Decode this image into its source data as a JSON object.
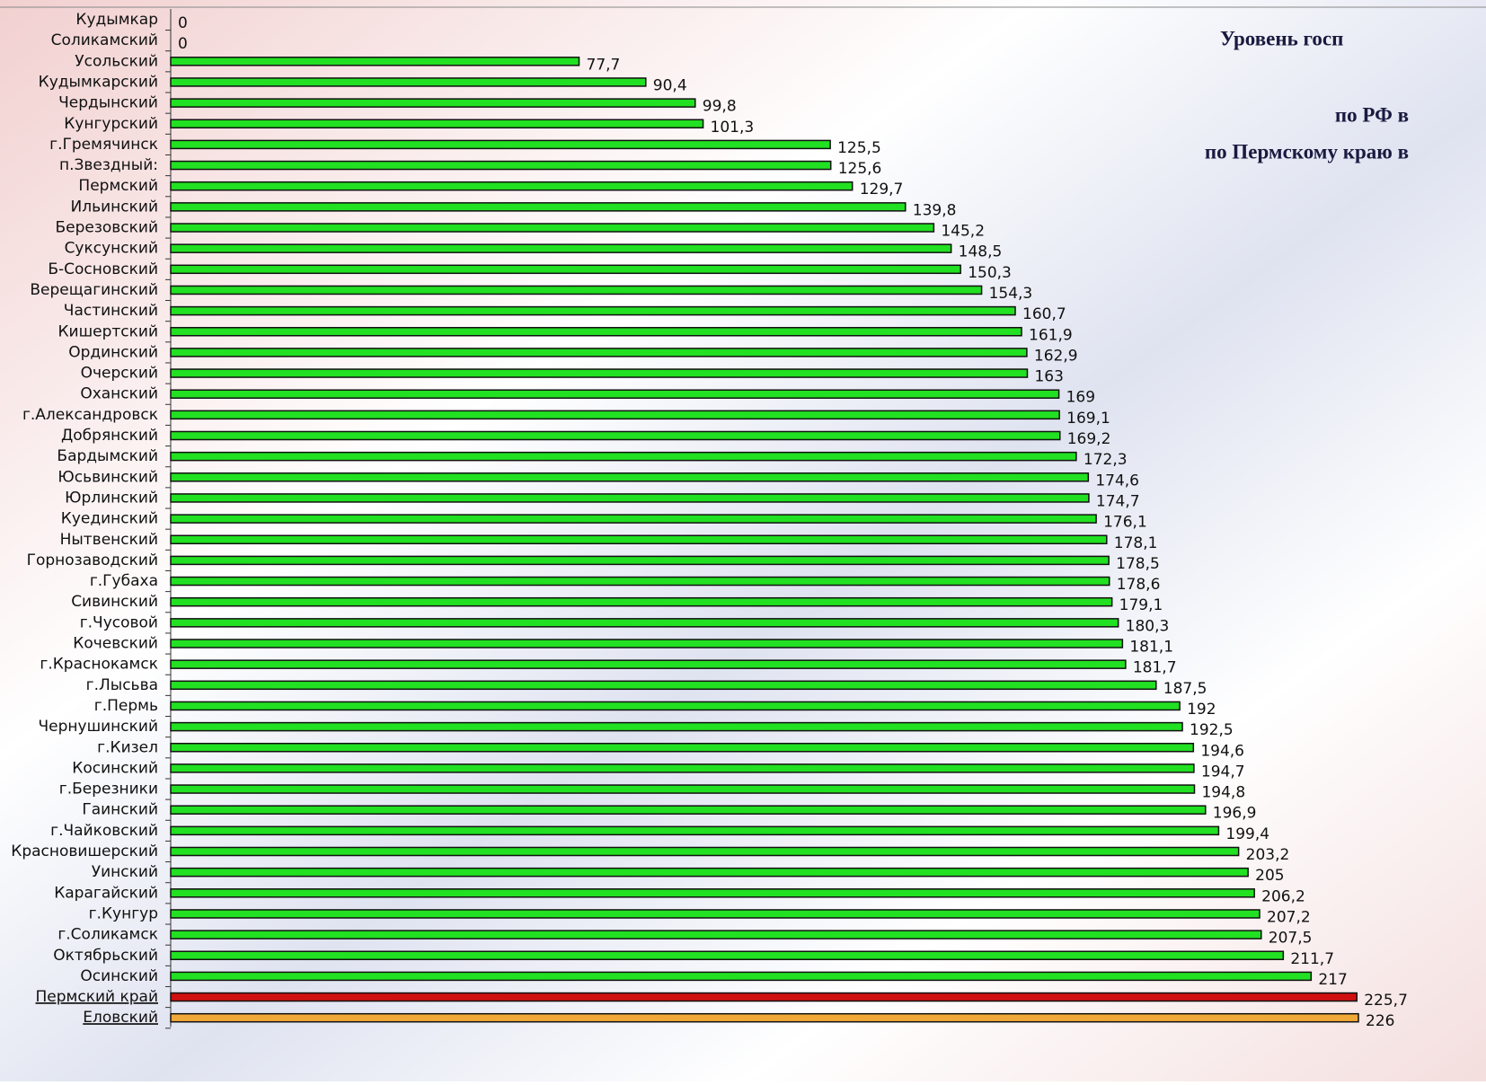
{
  "chart_data": {
    "type": "bar",
    "orientation": "horizontal",
    "annotations": [
      "Уровень госп",
      "по РФ в",
      "по Пермскому краю в"
    ],
    "categories": [
      "Кудымкар",
      "Соликамский",
      "Усольский",
      "Кудымкарский",
      "Чердынский",
      "Кунгурский",
      "г.Гремячинск",
      "п.Звездный:",
      "Пермский",
      "Ильинский",
      "Березовский",
      "Суксунский",
      "Б-Сосновский",
      "Верещагинский",
      "Частинский",
      "Кишертский",
      "Ординский",
      "Очерский",
      "Оханский",
      "г.Александровск",
      "Добрянский",
      "Бардымский",
      "Юсьвинский",
      "Юрлинский",
      "Куединский",
      "Нытвенский",
      "Горнозаводский",
      "г.Губаха",
      "Сивинский",
      "г.Чусовой",
      "Кочевский",
      "г.Краснокамск",
      "г.Лысьва",
      "г.Пермь",
      "Чернушинский",
      "г.Кизел",
      "Косинский",
      "г.Березники",
      "Гаинский",
      "г.Чайковский",
      "Красновишерский",
      "Уинский",
      "Карагайский",
      "г.Кунгур",
      "г.Соликамск",
      "Октябрьский",
      "Осинский",
      "Пермский край",
      "Еловский"
    ],
    "values": [
      0,
      0,
      77.7,
      90.4,
      99.8,
      101.3,
      125.5,
      125.6,
      129.7,
      139.8,
      145.2,
      148.5,
      150.3,
      154.3,
      160.7,
      161.9,
      162.9,
      163,
      169,
      169.1,
      169.2,
      172.3,
      174.6,
      174.7,
      176.1,
      178.1,
      178.5,
      178.6,
      179.1,
      180.3,
      181.1,
      181.7,
      187.5,
      192,
      192.5,
      194.6,
      194.7,
      194.8,
      196.9,
      199.4,
      203.2,
      205,
      206.2,
      207.2,
      207.5,
      211.7,
      217,
      225.7,
      226
    ],
    "value_labels": [
      "0",
      "0",
      "77,7",
      "90,4",
      "99,8",
      "101,3",
      "125,5",
      "125,6",
      "129,7",
      "139,8",
      "145,2",
      "148,5",
      "150,3",
      "154,3",
      "160,7",
      "161,9",
      "162,9",
      "163",
      "169",
      "169,1",
      "169,2",
      "172,3",
      "174,6",
      "174,7",
      "176,1",
      "178,1",
      "178,5",
      "178,6",
      "179,1",
      "180,3",
      "181,1",
      "181,7",
      "187,5",
      "192",
      "192,5",
      "194,6",
      "194,7",
      "194,8",
      "196,9",
      "199,4",
      "203,2",
      "205",
      "206,2",
      "207,2",
      "207,5",
      "211,7",
      "217",
      "225,7",
      "226"
    ],
    "color": "#22e022",
    "colors": [
      "#22e022",
      "#22e022",
      "#22e022",
      "#22e022",
      "#22e022",
      "#22e022",
      "#22e022",
      "#22e022",
      "#22e022",
      "#22e022",
      "#22e022",
      "#22e022",
      "#22e022",
      "#22e022",
      "#22e022",
      "#22e022",
      "#22e022",
      "#22e022",
      "#22e022",
      "#22e022",
      "#22e022",
      "#22e022",
      "#22e022",
      "#22e022",
      "#22e022",
      "#22e022",
      "#22e022",
      "#22e022",
      "#22e022",
      "#22e022",
      "#22e022",
      "#22e022",
      "#22e022",
      "#22e022",
      "#22e022",
      "#22e022",
      "#22e022",
      "#22e022",
      "#22e022",
      "#22e022",
      "#22e022",
      "#22e022",
      "#22e022",
      "#22e022",
      "#22e022",
      "#22e022",
      "#22e022",
      "#d01010",
      "#f0a838"
    ],
    "xlim": [
      0,
      226
    ]
  }
}
